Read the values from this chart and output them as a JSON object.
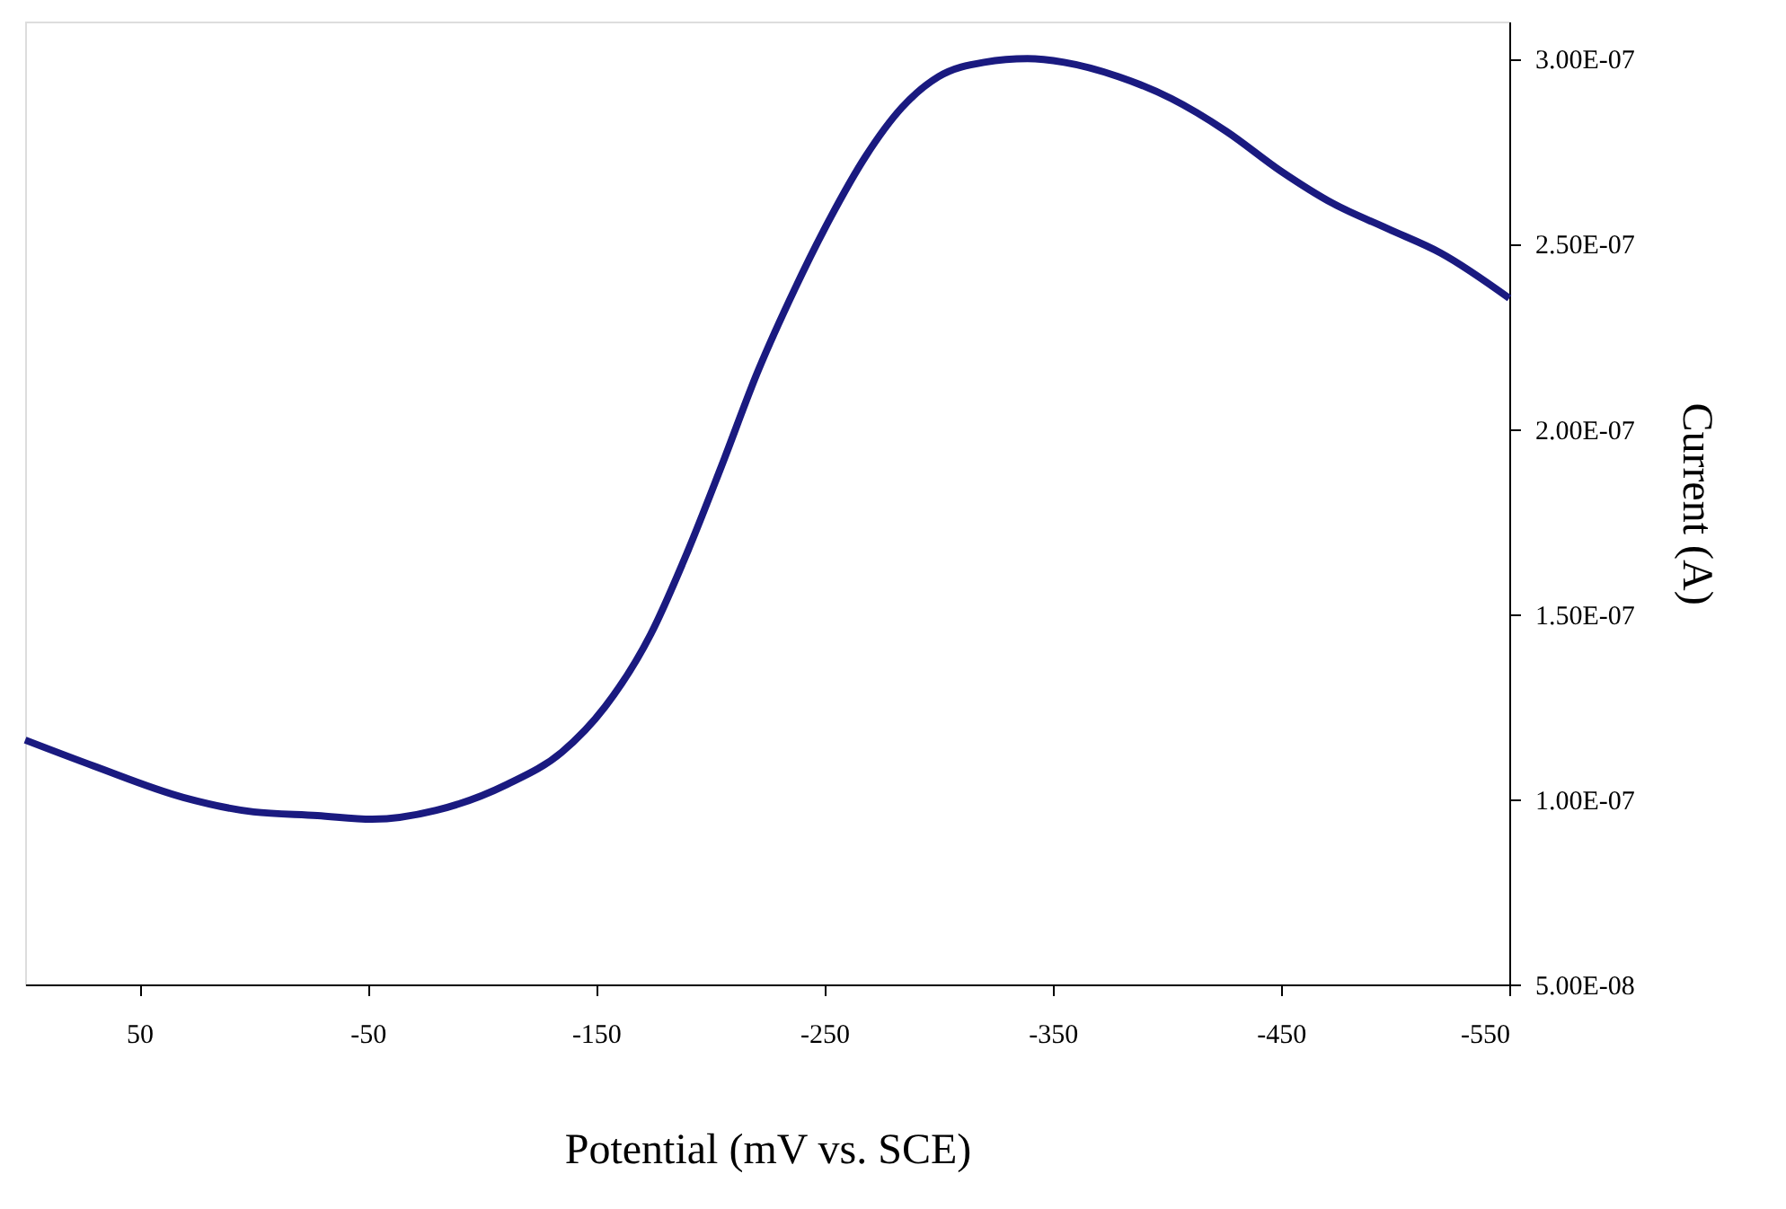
{
  "chart_data": {
    "type": "line",
    "xlabel": "Potential (mV vs. SCE)",
    "ylabel": "Current (A)",
    "x": [
      100,
      70,
      30.7,
      0,
      -28,
      -52,
      -80,
      -111,
      -135,
      -154,
      -174,
      -190,
      -205,
      -221,
      -237,
      -253,
      -268,
      -284,
      -300,
      -320,
      -339,
      -355,
      -379,
      -402,
      -426,
      -450,
      -473,
      -497,
      -520,
      -550
    ],
    "series": [
      {
        "color": "#1a1a80",
        "values": [
          1.16e-07,
          1.09e-07,
          1.005e-07,
          9.66e-08,
          9.56e-08,
          9.46e-08,
          9.7e-08,
          1.04e-07,
          1.127e-07,
          1.25e-07,
          1.446e-07,
          1.667e-07,
          1.9e-07,
          2.157e-07,
          2.377e-07,
          2.574e-07,
          2.735e-07,
          2.868e-07,
          2.951e-07,
          2.99e-07,
          3e-07,
          2.99e-07,
          2.951e-07,
          2.892e-07,
          2.804e-07,
          2.696e-07,
          2.608e-07,
          2.54e-07,
          2.475e-07,
          2.353e-07
        ]
      }
    ],
    "xlim": [
      100,
      -550
    ],
    "xticks": [
      50,
      -50,
      -150,
      -250,
      -350,
      -450,
      -550
    ],
    "ylim": [
      5e-08,
      3.1e-07
    ],
    "yticks": [
      {
        "value": 5e-08,
        "label": "5.00E-08"
      },
      {
        "value": 1e-07,
        "label": "1.00E-07"
      },
      {
        "value": 1.5e-07,
        "label": "1.50E-07"
      },
      {
        "value": 2e-07,
        "label": "2.00E-07"
      },
      {
        "value": 2.5e-07,
        "label": "2.50E-07"
      },
      {
        "value": 3e-07,
        "label": "3.00E-07"
      }
    ],
    "grid": false,
    "legend": false,
    "marker": "none",
    "line_style": "solid"
  }
}
